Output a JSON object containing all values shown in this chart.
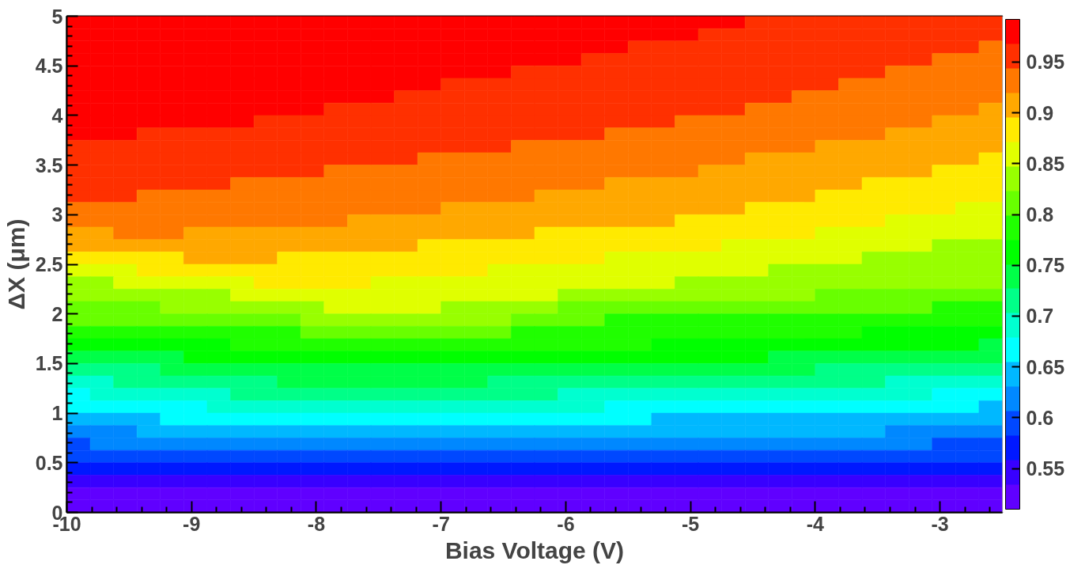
{
  "chart_data": {
    "type": "heatmap",
    "xlabel": "Bias Voltage (V)",
    "ylabel": "ΔX (μm)",
    "xlim": [
      -10,
      -2.5
    ],
    "xticks": [
      -10,
      -9,
      -8,
      -7,
      -6,
      -5,
      -4,
      -3
    ],
    "ylim": [
      0,
      5
    ],
    "yticks": [
      0,
      0.5,
      1,
      1.5,
      2,
      2.5,
      3,
      3.5,
      4,
      4.5,
      5
    ],
    "clim": [
      0.51,
      0.992
    ],
    "cticks": [
      0.55,
      0.6,
      0.65,
      0.7,
      0.75,
      0.8,
      0.85,
      0.9,
      0.95
    ],
    "cells": [
      [
        0.98,
        0.98,
        0.98,
        0.98,
        0.98,
        0.98,
        0.98,
        0.98,
        0.98,
        0.98,
        0.98,
        0.98,
        0.98,
        0.98,
        0.98,
        0.98,
        0.98,
        0.98,
        0.98,
        0.98,
        0.98,
        0.98,
        0.98,
        0.98,
        0.98,
        0.98,
        0.98,
        0.98,
        0.98,
        0.956,
        0.956,
        0.956,
        0.956,
        0.956,
        0.956,
        0.956,
        0.956,
        0.956,
        0.956,
        0.956
      ],
      [
        0.98,
        0.98,
        0.98,
        0.98,
        0.98,
        0.98,
        0.98,
        0.98,
        0.98,
        0.98,
        0.98,
        0.98,
        0.98,
        0.98,
        0.98,
        0.98,
        0.98,
        0.98,
        0.98,
        0.98,
        0.98,
        0.98,
        0.98,
        0.98,
        0.98,
        0.98,
        0.98,
        0.956,
        0.956,
        0.956,
        0.956,
        0.956,
        0.956,
        0.956,
        0.956,
        0.956,
        0.956,
        0.956,
        0.956,
        0.956
      ],
      [
        0.98,
        0.98,
        0.98,
        0.98,
        0.98,
        0.98,
        0.98,
        0.98,
        0.98,
        0.98,
        0.98,
        0.98,
        0.98,
        0.98,
        0.98,
        0.98,
        0.98,
        0.98,
        0.98,
        0.98,
        0.98,
        0.98,
        0.98,
        0.98,
        0.956,
        0.956,
        0.956,
        0.956,
        0.956,
        0.956,
        0.956,
        0.956,
        0.956,
        0.956,
        0.956,
        0.956,
        0.956,
        0.956,
        0.956,
        0.932
      ],
      [
        0.98,
        0.98,
        0.98,
        0.98,
        0.98,
        0.98,
        0.98,
        0.98,
        0.98,
        0.98,
        0.98,
        0.98,
        0.98,
        0.98,
        0.98,
        0.98,
        0.98,
        0.98,
        0.98,
        0.98,
        0.98,
        0.98,
        0.956,
        0.956,
        0.956,
        0.956,
        0.956,
        0.956,
        0.956,
        0.956,
        0.956,
        0.956,
        0.956,
        0.956,
        0.956,
        0.956,
        0.956,
        0.932,
        0.932,
        0.932
      ],
      [
        0.98,
        0.98,
        0.98,
        0.98,
        0.98,
        0.98,
        0.98,
        0.98,
        0.98,
        0.98,
        0.98,
        0.98,
        0.98,
        0.98,
        0.98,
        0.98,
        0.98,
        0.98,
        0.98,
        0.956,
        0.956,
        0.956,
        0.956,
        0.956,
        0.956,
        0.956,
        0.956,
        0.956,
        0.956,
        0.956,
        0.956,
        0.956,
        0.956,
        0.956,
        0.956,
        0.932,
        0.932,
        0.932,
        0.932,
        0.932
      ],
      [
        0.98,
        0.98,
        0.98,
        0.98,
        0.98,
        0.98,
        0.98,
        0.98,
        0.98,
        0.98,
        0.98,
        0.98,
        0.98,
        0.98,
        0.98,
        0.98,
        0.956,
        0.956,
        0.956,
        0.956,
        0.956,
        0.956,
        0.956,
        0.956,
        0.956,
        0.956,
        0.956,
        0.956,
        0.956,
        0.956,
        0.956,
        0.956,
        0.956,
        0.932,
        0.932,
        0.932,
        0.932,
        0.932,
        0.932,
        0.932
      ],
      [
        0.98,
        0.98,
        0.98,
        0.98,
        0.98,
        0.98,
        0.98,
        0.98,
        0.98,
        0.98,
        0.98,
        0.98,
        0.98,
        0.98,
        0.956,
        0.956,
        0.956,
        0.956,
        0.956,
        0.956,
        0.956,
        0.956,
        0.956,
        0.956,
        0.956,
        0.956,
        0.956,
        0.956,
        0.956,
        0.956,
        0.956,
        0.932,
        0.932,
        0.932,
        0.932,
        0.932,
        0.932,
        0.932,
        0.932,
        0.932
      ],
      [
        0.98,
        0.98,
        0.98,
        0.98,
        0.98,
        0.98,
        0.98,
        0.98,
        0.98,
        0.98,
        0.98,
        0.956,
        0.956,
        0.956,
        0.956,
        0.956,
        0.956,
        0.956,
        0.956,
        0.956,
        0.956,
        0.956,
        0.956,
        0.956,
        0.956,
        0.956,
        0.956,
        0.956,
        0.956,
        0.932,
        0.932,
        0.932,
        0.932,
        0.932,
        0.932,
        0.932,
        0.932,
        0.932,
        0.932,
        0.908
      ],
      [
        0.98,
        0.98,
        0.98,
        0.98,
        0.98,
        0.98,
        0.98,
        0.98,
        0.956,
        0.956,
        0.956,
        0.956,
        0.956,
        0.956,
        0.956,
        0.956,
        0.956,
        0.956,
        0.956,
        0.956,
        0.956,
        0.956,
        0.956,
        0.956,
        0.956,
        0.956,
        0.932,
        0.932,
        0.932,
        0.932,
        0.932,
        0.932,
        0.932,
        0.932,
        0.932,
        0.932,
        0.932,
        0.908,
        0.908,
        0.908
      ],
      [
        0.98,
        0.98,
        0.98,
        0.956,
        0.956,
        0.956,
        0.956,
        0.956,
        0.956,
        0.956,
        0.956,
        0.956,
        0.956,
        0.956,
        0.956,
        0.956,
        0.956,
        0.956,
        0.956,
        0.956,
        0.956,
        0.956,
        0.956,
        0.932,
        0.932,
        0.932,
        0.932,
        0.932,
        0.932,
        0.932,
        0.932,
        0.932,
        0.932,
        0.932,
        0.932,
        0.908,
        0.908,
        0.908,
        0.908,
        0.908
      ],
      [
        0.956,
        0.956,
        0.956,
        0.956,
        0.956,
        0.956,
        0.956,
        0.956,
        0.956,
        0.956,
        0.956,
        0.956,
        0.956,
        0.956,
        0.956,
        0.956,
        0.956,
        0.956,
        0.956,
        0.932,
        0.932,
        0.932,
        0.932,
        0.932,
        0.932,
        0.932,
        0.932,
        0.932,
        0.932,
        0.932,
        0.932,
        0.932,
        0.908,
        0.908,
        0.908,
        0.908,
        0.908,
        0.908,
        0.908,
        0.908
      ],
      [
        0.956,
        0.956,
        0.956,
        0.956,
        0.956,
        0.956,
        0.956,
        0.956,
        0.956,
        0.956,
        0.956,
        0.956,
        0.956,
        0.956,
        0.956,
        0.932,
        0.932,
        0.932,
        0.932,
        0.932,
        0.932,
        0.932,
        0.932,
        0.932,
        0.932,
        0.932,
        0.932,
        0.932,
        0.932,
        0.908,
        0.908,
        0.908,
        0.908,
        0.908,
        0.908,
        0.908,
        0.908,
        0.908,
        0.908,
        0.884
      ],
      [
        0.956,
        0.956,
        0.956,
        0.956,
        0.956,
        0.956,
        0.956,
        0.956,
        0.956,
        0.956,
        0.956,
        0.932,
        0.932,
        0.932,
        0.932,
        0.932,
        0.932,
        0.932,
        0.932,
        0.932,
        0.932,
        0.932,
        0.932,
        0.932,
        0.932,
        0.932,
        0.932,
        0.908,
        0.908,
        0.908,
        0.908,
        0.908,
        0.908,
        0.908,
        0.908,
        0.908,
        0.908,
        0.884,
        0.884,
        0.884
      ],
      [
        0.956,
        0.956,
        0.956,
        0.956,
        0.956,
        0.956,
        0.956,
        0.932,
        0.932,
        0.932,
        0.932,
        0.932,
        0.932,
        0.932,
        0.932,
        0.932,
        0.932,
        0.932,
        0.932,
        0.932,
        0.932,
        0.932,
        0.932,
        0.908,
        0.908,
        0.908,
        0.908,
        0.908,
        0.908,
        0.908,
        0.908,
        0.908,
        0.908,
        0.908,
        0.884,
        0.884,
        0.884,
        0.884,
        0.884,
        0.884
      ],
      [
        0.956,
        0.956,
        0.956,
        0.932,
        0.932,
        0.932,
        0.932,
        0.932,
        0.932,
        0.932,
        0.932,
        0.932,
        0.932,
        0.932,
        0.932,
        0.932,
        0.932,
        0.932,
        0.932,
        0.932,
        0.908,
        0.908,
        0.908,
        0.908,
        0.908,
        0.908,
        0.908,
        0.908,
        0.908,
        0.908,
        0.908,
        0.908,
        0.884,
        0.884,
        0.884,
        0.884,
        0.884,
        0.884,
        0.884,
        0.884
      ],
      [
        0.932,
        0.932,
        0.932,
        0.932,
        0.932,
        0.932,
        0.932,
        0.932,
        0.932,
        0.932,
        0.932,
        0.932,
        0.932,
        0.932,
        0.932,
        0.932,
        0.908,
        0.908,
        0.908,
        0.908,
        0.908,
        0.908,
        0.908,
        0.908,
        0.908,
        0.908,
        0.908,
        0.908,
        0.908,
        0.884,
        0.884,
        0.884,
        0.884,
        0.884,
        0.884,
        0.884,
        0.884,
        0.884,
        0.859,
        0.859
      ],
      [
        0.932,
        0.932,
        0.932,
        0.932,
        0.932,
        0.932,
        0.932,
        0.932,
        0.932,
        0.932,
        0.932,
        0.932,
        0.908,
        0.908,
        0.908,
        0.908,
        0.908,
        0.908,
        0.908,
        0.908,
        0.908,
        0.908,
        0.908,
        0.908,
        0.908,
        0.908,
        0.884,
        0.884,
        0.884,
        0.884,
        0.884,
        0.884,
        0.884,
        0.884,
        0.884,
        0.859,
        0.859,
        0.859,
        0.859,
        0.859
      ],
      [
        0.908,
        0.908,
        0.932,
        0.932,
        0.932,
        0.908,
        0.908,
        0.908,
        0.908,
        0.908,
        0.908,
        0.908,
        0.908,
        0.908,
        0.908,
        0.908,
        0.908,
        0.908,
        0.908,
        0.908,
        0.884,
        0.884,
        0.884,
        0.884,
        0.884,
        0.884,
        0.884,
        0.884,
        0.884,
        0.884,
        0.884,
        0.884,
        0.859,
        0.859,
        0.859,
        0.859,
        0.859,
        0.859,
        0.859,
        0.859
      ],
      [
        0.908,
        0.908,
        0.908,
        0.908,
        0.908,
        0.908,
        0.908,
        0.908,
        0.908,
        0.908,
        0.908,
        0.908,
        0.908,
        0.908,
        0.908,
        0.884,
        0.884,
        0.884,
        0.884,
        0.884,
        0.884,
        0.884,
        0.884,
        0.884,
        0.884,
        0.884,
        0.884,
        0.884,
        0.859,
        0.859,
        0.859,
        0.859,
        0.859,
        0.859,
        0.859,
        0.859,
        0.859,
        0.835,
        0.835,
        0.835
      ],
      [
        0.884,
        0.884,
        0.884,
        0.884,
        0.884,
        0.908,
        0.908,
        0.908,
        0.908,
        0.884,
        0.884,
        0.884,
        0.884,
        0.884,
        0.884,
        0.884,
        0.884,
        0.884,
        0.884,
        0.884,
        0.884,
        0.884,
        0.884,
        0.859,
        0.859,
        0.859,
        0.859,
        0.859,
        0.859,
        0.859,
        0.859,
        0.859,
        0.859,
        0.859,
        0.835,
        0.835,
        0.835,
        0.835,
        0.835,
        0.835
      ],
      [
        0.859,
        0.859,
        0.859,
        0.884,
        0.884,
        0.884,
        0.884,
        0.884,
        0.884,
        0.884,
        0.884,
        0.884,
        0.884,
        0.884,
        0.884,
        0.884,
        0.884,
        0.884,
        0.859,
        0.859,
        0.859,
        0.859,
        0.859,
        0.859,
        0.859,
        0.859,
        0.859,
        0.859,
        0.859,
        0.859,
        0.835,
        0.835,
        0.835,
        0.835,
        0.835,
        0.835,
        0.835,
        0.835,
        0.835,
        0.835
      ],
      [
        0.835,
        0.835,
        0.859,
        0.859,
        0.859,
        0.859,
        0.859,
        0.859,
        0.884,
        0.884,
        0.884,
        0.884,
        0.884,
        0.859,
        0.859,
        0.859,
        0.859,
        0.859,
        0.859,
        0.859,
        0.859,
        0.859,
        0.859,
        0.859,
        0.859,
        0.859,
        0.835,
        0.835,
        0.835,
        0.835,
        0.835,
        0.835,
        0.835,
        0.835,
        0.835,
        0.835,
        0.835,
        0.835,
        0.835,
        0.835
      ],
      [
        0.835,
        0.835,
        0.835,
        0.835,
        0.835,
        0.835,
        0.835,
        0.859,
        0.859,
        0.859,
        0.859,
        0.859,
        0.859,
        0.859,
        0.859,
        0.859,
        0.859,
        0.859,
        0.859,
        0.859,
        0.859,
        0.835,
        0.835,
        0.835,
        0.835,
        0.835,
        0.835,
        0.835,
        0.835,
        0.835,
        0.835,
        0.835,
        0.811,
        0.811,
        0.811,
        0.811,
        0.811,
        0.811,
        0.811,
        0.811
      ],
      [
        0.811,
        0.811,
        0.811,
        0.811,
        0.835,
        0.835,
        0.835,
        0.835,
        0.835,
        0.835,
        0.835,
        0.859,
        0.859,
        0.859,
        0.859,
        0.859,
        0.835,
        0.835,
        0.835,
        0.835,
        0.835,
        0.811,
        0.811,
        0.811,
        0.811,
        0.811,
        0.811,
        0.811,
        0.811,
        0.811,
        0.811,
        0.811,
        0.811,
        0.811,
        0.811,
        0.811,
        0.811,
        0.787,
        0.787,
        0.787
      ],
      [
        0.811,
        0.811,
        0.811,
        0.811,
        0.811,
        0.811,
        0.811,
        0.811,
        0.811,
        0.811,
        0.835,
        0.835,
        0.835,
        0.835,
        0.835,
        0.835,
        0.835,
        0.835,
        0.835,
        0.811,
        0.811,
        0.811,
        0.811,
        0.787,
        0.787,
        0.787,
        0.787,
        0.787,
        0.787,
        0.787,
        0.787,
        0.787,
        0.787,
        0.787,
        0.787,
        0.787,
        0.787,
        0.787,
        0.787,
        0.787
      ],
      [
        0.787,
        0.787,
        0.787,
        0.787,
        0.787,
        0.787,
        0.787,
        0.787,
        0.787,
        0.787,
        0.811,
        0.811,
        0.811,
        0.811,
        0.811,
        0.811,
        0.811,
        0.811,
        0.811,
        0.787,
        0.787,
        0.787,
        0.787,
        0.787,
        0.787,
        0.787,
        0.787,
        0.787,
        0.787,
        0.787,
        0.787,
        0.787,
        0.787,
        0.787,
        0.763,
        0.763,
        0.763,
        0.763,
        0.763,
        0.763
      ],
      [
        0.763,
        0.763,
        0.763,
        0.763,
        0.763,
        0.763,
        0.763,
        0.787,
        0.787,
        0.787,
        0.787,
        0.787,
        0.787,
        0.787,
        0.787,
        0.787,
        0.787,
        0.787,
        0.787,
        0.787,
        0.787,
        0.787,
        0.787,
        0.787,
        0.787,
        0.763,
        0.763,
        0.763,
        0.763,
        0.763,
        0.763,
        0.763,
        0.763,
        0.763,
        0.763,
        0.763,
        0.763,
        0.763,
        0.763,
        0.739
      ],
      [
        0.739,
        0.739,
        0.739,
        0.739,
        0.739,
        0.763,
        0.763,
        0.763,
        0.763,
        0.763,
        0.763,
        0.763,
        0.763,
        0.763,
        0.763,
        0.763,
        0.763,
        0.763,
        0.763,
        0.763,
        0.763,
        0.763,
        0.763,
        0.763,
        0.763,
        0.763,
        0.763,
        0.763,
        0.763,
        0.763,
        0.739,
        0.739,
        0.739,
        0.739,
        0.739,
        0.739,
        0.739,
        0.739,
        0.739,
        0.739
      ],
      [
        0.715,
        0.715,
        0.715,
        0.715,
        0.739,
        0.739,
        0.739,
        0.739,
        0.739,
        0.739,
        0.739,
        0.739,
        0.739,
        0.739,
        0.739,
        0.739,
        0.739,
        0.739,
        0.739,
        0.739,
        0.739,
        0.739,
        0.739,
        0.739,
        0.739,
        0.739,
        0.739,
        0.739,
        0.739,
        0.739,
        0.739,
        0.739,
        0.715,
        0.715,
        0.715,
        0.715,
        0.715,
        0.715,
        0.715,
        0.715
      ],
      [
        0.691,
        0.691,
        0.715,
        0.715,
        0.715,
        0.715,
        0.715,
        0.715,
        0.715,
        0.739,
        0.739,
        0.739,
        0.739,
        0.739,
        0.739,
        0.739,
        0.739,
        0.739,
        0.715,
        0.715,
        0.715,
        0.715,
        0.715,
        0.715,
        0.715,
        0.715,
        0.715,
        0.715,
        0.715,
        0.715,
        0.715,
        0.715,
        0.715,
        0.715,
        0.715,
        0.691,
        0.691,
        0.691,
        0.691,
        0.691
      ],
      [
        0.667,
        0.691,
        0.691,
        0.691,
        0.691,
        0.691,
        0.691,
        0.715,
        0.715,
        0.715,
        0.715,
        0.715,
        0.715,
        0.715,
        0.715,
        0.715,
        0.715,
        0.715,
        0.715,
        0.715,
        0.715,
        0.691,
        0.691,
        0.691,
        0.691,
        0.691,
        0.691,
        0.691,
        0.691,
        0.691,
        0.691,
        0.691,
        0.691,
        0.691,
        0.691,
        0.691,
        0.691,
        0.667,
        0.667,
        0.667
      ],
      [
        0.667,
        0.667,
        0.667,
        0.667,
        0.667,
        0.667,
        0.691,
        0.691,
        0.691,
        0.691,
        0.691,
        0.691,
        0.691,
        0.691,
        0.691,
        0.691,
        0.691,
        0.691,
        0.691,
        0.691,
        0.691,
        0.691,
        0.691,
        0.667,
        0.667,
        0.667,
        0.667,
        0.667,
        0.667,
        0.667,
        0.667,
        0.667,
        0.667,
        0.667,
        0.667,
        0.667,
        0.667,
        0.667,
        0.667,
        0.643
      ],
      [
        0.643,
        0.643,
        0.643,
        0.643,
        0.667,
        0.667,
        0.667,
        0.667,
        0.667,
        0.667,
        0.667,
        0.667,
        0.667,
        0.667,
        0.667,
        0.667,
        0.667,
        0.667,
        0.667,
        0.667,
        0.667,
        0.667,
        0.667,
        0.667,
        0.667,
        0.643,
        0.643,
        0.643,
        0.643,
        0.643,
        0.643,
        0.643,
        0.643,
        0.643,
        0.643,
        0.643,
        0.643,
        0.643,
        0.643,
        0.643
      ],
      [
        0.618,
        0.618,
        0.618,
        0.643,
        0.643,
        0.643,
        0.643,
        0.643,
        0.643,
        0.643,
        0.643,
        0.643,
        0.643,
        0.643,
        0.643,
        0.643,
        0.643,
        0.643,
        0.643,
        0.643,
        0.643,
        0.643,
        0.643,
        0.643,
        0.643,
        0.643,
        0.643,
        0.643,
        0.643,
        0.643,
        0.643,
        0.643,
        0.643,
        0.643,
        0.643,
        0.618,
        0.618,
        0.618,
        0.618,
        0.618
      ],
      [
        0.594,
        0.618,
        0.618,
        0.618,
        0.618,
        0.618,
        0.618,
        0.618,
        0.618,
        0.618,
        0.618,
        0.618,
        0.618,
        0.618,
        0.618,
        0.618,
        0.618,
        0.618,
        0.618,
        0.618,
        0.618,
        0.618,
        0.618,
        0.618,
        0.618,
        0.618,
        0.618,
        0.618,
        0.618,
        0.618,
        0.618,
        0.618,
        0.618,
        0.618,
        0.618,
        0.618,
        0.618,
        0.594,
        0.594,
        0.594
      ],
      [
        0.594,
        0.594,
        0.594,
        0.594,
        0.594,
        0.594,
        0.594,
        0.594,
        0.594,
        0.594,
        0.594,
        0.594,
        0.594,
        0.594,
        0.594,
        0.594,
        0.594,
        0.594,
        0.594,
        0.594,
        0.594,
        0.594,
        0.594,
        0.594,
        0.594,
        0.594,
        0.594,
        0.594,
        0.594,
        0.594,
        0.594,
        0.594,
        0.594,
        0.594,
        0.594,
        0.594,
        0.594,
        0.594,
        0.594,
        0.594
      ],
      [
        0.57,
        0.57,
        0.57,
        0.57,
        0.57,
        0.57,
        0.57,
        0.57,
        0.57,
        0.57,
        0.57,
        0.57,
        0.57,
        0.57,
        0.57,
        0.57,
        0.57,
        0.57,
        0.57,
        0.57,
        0.57,
        0.57,
        0.57,
        0.57,
        0.57,
        0.57,
        0.57,
        0.57,
        0.57,
        0.57,
        0.57,
        0.57,
        0.57,
        0.57,
        0.57,
        0.57,
        0.57,
        0.57,
        0.57,
        0.57
      ],
      [
        0.546,
        0.546,
        0.546,
        0.546,
        0.546,
        0.546,
        0.546,
        0.546,
        0.546,
        0.546,
        0.546,
        0.546,
        0.546,
        0.546,
        0.546,
        0.546,
        0.546,
        0.546,
        0.546,
        0.546,
        0.546,
        0.546,
        0.546,
        0.546,
        0.546,
        0.546,
        0.546,
        0.546,
        0.546,
        0.546,
        0.546,
        0.546,
        0.546,
        0.546,
        0.546,
        0.546,
        0.546,
        0.546,
        0.546,
        0.546
      ],
      [
        0.522,
        0.522,
        0.522,
        0.522,
        0.522,
        0.522,
        0.522,
        0.522,
        0.522,
        0.522,
        0.522,
        0.522,
        0.522,
        0.522,
        0.522,
        0.522,
        0.522,
        0.522,
        0.522,
        0.522,
        0.522,
        0.522,
        0.522,
        0.522,
        0.522,
        0.522,
        0.522,
        0.522,
        0.522,
        0.522,
        0.522,
        0.522,
        0.522,
        0.522,
        0.522,
        0.522,
        0.522,
        0.522,
        0.522,
        0.522
      ],
      [
        0.522,
        0.522,
        0.522,
        0.522,
        0.522,
        0.522,
        0.522,
        0.522,
        0.522,
        0.522,
        0.522,
        0.522,
        0.522,
        0.522,
        0.522,
        0.522,
        0.522,
        0.522,
        0.522,
        0.522,
        0.522,
        0.522,
        0.522,
        0.522,
        0.522,
        0.522,
        0.522,
        0.522,
        0.522,
        0.522,
        0.522,
        0.522,
        0.522,
        0.522,
        0.522,
        0.522,
        0.522,
        0.522,
        0.522,
        0.522
      ]
    ]
  }
}
